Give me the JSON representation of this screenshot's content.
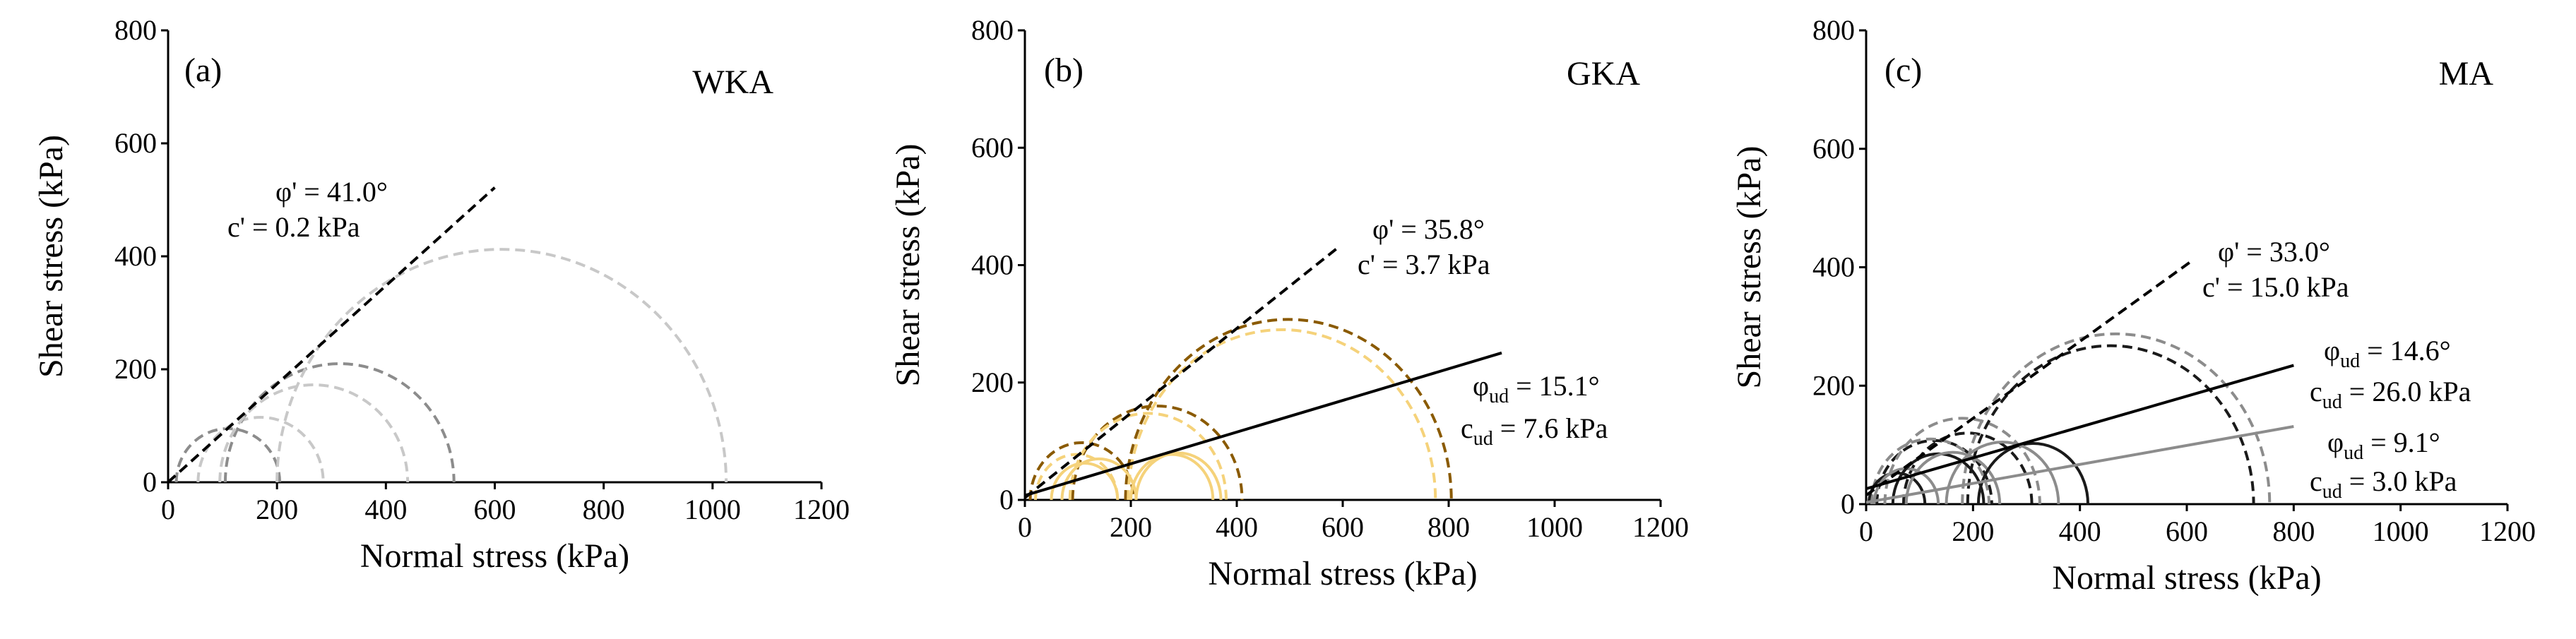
{
  "chart_data": [
    {
      "type": "mohr-coulomb",
      "panel_label": "(a)",
      "material": "WKA",
      "xlabel": "Normal stress (kPa)",
      "ylabel": "Shear stress (kPa)",
      "xlim": [
        0,
        1200
      ],
      "ylim": [
        0,
        800
      ],
      "xticks": [
        "0",
        "200",
        "400",
        "600",
        "800",
        "1000",
        "1200"
      ],
      "yticks": [
        "0",
        "200",
        "400",
        "600",
        "800"
      ],
      "circles": [
        {
          "s3": 15,
          "s1": 205,
          "color": "#8c8c8c",
          "dash": true
        },
        {
          "s3": 55,
          "s1": 285,
          "color": "#c8c8c8",
          "dash": true
        },
        {
          "s3": 105,
          "s1": 525,
          "color": "#8c8c8c",
          "dash": true
        },
        {
          "s3": 95,
          "s1": 440,
          "color": "#c8c8c8",
          "dash": true
        },
        {
          "s3": 200,
          "s1": 1025,
          "color": "#c8c8c8",
          "dash": true
        }
      ],
      "envelopes": [
        {
          "phi_deg": 41.0,
          "c": 0.2,
          "x_end": 600,
          "color": "#000000",
          "dash": true,
          "label_phi": "φ' = 41.0°",
          "label_c": "c' = 0.2 kPa"
        }
      ]
    },
    {
      "type": "mohr-coulomb",
      "panel_label": "(b)",
      "material": "GKA",
      "xlabel": "Normal stress (kPa)",
      "ylabel": "Shear stress (kPa)",
      "xlim": [
        0,
        1200
      ],
      "ylim": [
        0,
        800
      ],
      "xticks": [
        "0",
        "200",
        "400",
        "600",
        "800",
        "1000",
        "1200"
      ],
      "yticks": [
        "0",
        "200",
        "400",
        "600",
        "800"
      ],
      "circles": [
        {
          "s3": 10,
          "s1": 205,
          "color": "#8a5a00",
          "dash": true
        },
        {
          "s3": 20,
          "s1": 175,
          "color": "#f5d27a",
          "dash": true
        },
        {
          "s3": 90,
          "s1": 410,
          "color": "#8a5a00",
          "dash": true
        },
        {
          "s3": 85,
          "s1": 380,
          "color": "#f5d27a",
          "dash": true
        },
        {
          "s3": 190,
          "s1": 805,
          "color": "#8a5a00",
          "dash": true
        },
        {
          "s3": 195,
          "s1": 775,
          "color": "#f5d27a",
          "dash": true
        },
        {
          "s3": 50,
          "s1": 175,
          "color": "#f5d27a",
          "dash": false
        },
        {
          "s3": 70,
          "s1": 210,
          "color": "#f5d27a",
          "dash": false
        },
        {
          "s3": 200,
          "s1": 355,
          "color": "#f5d27a",
          "dash": false
        },
        {
          "s3": 210,
          "s1": 370,
          "color": "#f5d27a",
          "dash": false
        }
      ],
      "envelopes": [
        {
          "phi_deg": 35.8,
          "c": 3.7,
          "x_end": 590,
          "color": "#000000",
          "dash": true,
          "label_phi": "φ' = 35.8°",
          "label_c": "c' = 3.7 kPa"
        },
        {
          "phi_deg": 15.1,
          "c": 7.6,
          "x_end": 900,
          "color": "#000000",
          "dash": false,
          "label_phi_pre": "φ",
          "label_phi_sub": "ud",
          "label_phi_post": " = 15.1°",
          "label_c_pre": "c",
          "label_c_sub": "ud",
          "label_c_post": " = 7.6 kPa"
        }
      ]
    },
    {
      "type": "mohr-coulomb",
      "panel_label": "(c)",
      "material": "MA",
      "xlabel": "Normal stress (kPa)",
      "ylabel": "Shear stress (kPa)",
      "xlim": [
        0,
        1200
      ],
      "ylim": [
        0,
        800
      ],
      "xticks": [
        "0",
        "200",
        "400",
        "600",
        "800",
        "1000",
        "1200"
      ],
      "yticks": [
        "0",
        "200",
        "400",
        "600",
        "800"
      ],
      "circles": [
        {
          "s3": 20,
          "s1": 235,
          "color": "#1a1a1a",
          "dash": true
        },
        {
          "s3": 10,
          "s1": 230,
          "color": "#8c8c8c",
          "dash": true
        },
        {
          "s3": 70,
          "s1": 310,
          "color": "#1a1a1a",
          "dash": true
        },
        {
          "s3": 35,
          "s1": 325,
          "color": "#8c8c8c",
          "dash": true
        },
        {
          "s3": 190,
          "s1": 725,
          "color": "#1a1a1a",
          "dash": true
        },
        {
          "s3": 180,
          "s1": 755,
          "color": "#8c8c8c",
          "dash": true
        },
        {
          "s3": 5,
          "s1": 110,
          "color": "#1a1a1a",
          "dash": false
        },
        {
          "s3": 15,
          "s1": 135,
          "color": "#8c8c8c",
          "dash": false
        },
        {
          "s3": 50,
          "s1": 220,
          "color": "#1a1a1a",
          "dash": false
        },
        {
          "s3": 75,
          "s1": 250,
          "color": "#8c8c8c",
          "dash": false
        },
        {
          "s3": 210,
          "s1": 415,
          "color": "#1a1a1a",
          "dash": false
        },
        {
          "s3": 150,
          "s1": 360,
          "color": "#8c8c8c",
          "dash": false
        }
      ],
      "envelopes": [
        {
          "phi_deg": 33.0,
          "c": 15.0,
          "x_end": 610,
          "color": "#000000",
          "dash": true,
          "label_phi": "φ' = 33.0°",
          "label_c": "c' = 15.0 kPa"
        },
        {
          "phi_deg": 14.6,
          "c": 26.0,
          "x_end": 800,
          "color": "#000000",
          "dash": false,
          "label_phi_pre": "φ",
          "label_phi_sub": "ud",
          "label_phi_post": " = 14.6°",
          "label_c_pre": "c",
          "label_c_sub": "ud",
          "label_c_post": " = 26.0 kPa"
        },
        {
          "phi_deg": 9.1,
          "c": 3.0,
          "x_end": 800,
          "color": "#8c8c8c",
          "dash": false,
          "label_phi_pre": "φ",
          "label_phi_sub": "ud",
          "label_phi_post": " = 9.1°",
          "label_c_pre": "c",
          "label_c_sub": "ud",
          "label_c_post": " = 3.0 kPa"
        }
      ]
    }
  ]
}
